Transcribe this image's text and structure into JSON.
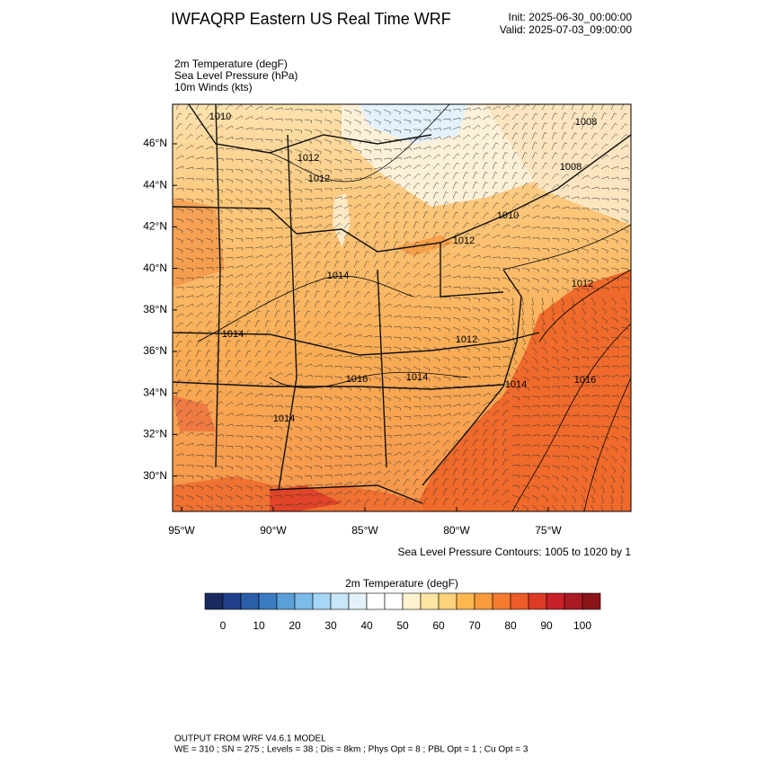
{
  "header": {
    "title": "IWFAQRP Eastern US Real Time WRF",
    "init": "Init: 2025-06-30_00:00:00",
    "valid": "Valid: 2025-07-03_09:00:00"
  },
  "fields": [
    "2m Temperature   (degF)",
    "Sea Level Pressure   (hPa)",
    "10m Winds   (kts)"
  ],
  "map": {
    "lat_labels": [
      "46°N",
      "44°N",
      "42°N",
      "40°N",
      "38°N",
      "36°N",
      "34°N",
      "32°N",
      "30°N"
    ],
    "lon_labels": [
      "95°W",
      "90°W",
      "85°W",
      "80°W",
      "75°W"
    ],
    "contour_labels": [
      "1010",
      "1008",
      "1012",
      "1012",
      "1008",
      "1010",
      "1012",
      "1014",
      "1012",
      "1014",
      "1012",
      "1016",
      "1014",
      "1014",
      "1016",
      "1014"
    ],
    "contour_note": "Sea Level Pressure Contours: 1005 to 1020 by 1"
  },
  "colorbar": {
    "title": "2m Temperature  (degF)",
    "labels": [
      0,
      10,
      20,
      30,
      40,
      50,
      60,
      70,
      80,
      90,
      100
    ],
    "colors": [
      "#1b2a5e",
      "#1f3f8a",
      "#2b5ea8",
      "#3a7cc2",
      "#5a9fd8",
      "#7dbbea",
      "#a5d6f5",
      "#c7e6f8",
      "#e3f2fa",
      "#ffffff",
      "#ffffff",
      "#fff3cf",
      "#fee6a2",
      "#fdd27a",
      "#fdb84f",
      "#f99a3c",
      "#f47b2e",
      "#ec5b28",
      "#dd3b26",
      "#c8202a",
      "#aa1a22",
      "#8b1419"
    ]
  },
  "footer": [
    "OUTPUT FROM WRF V4.6.1 MODEL",
    "WE = 310 ; SN = 275 ; Levels = 38 ; Dis = 8km ; Phys Opt = 8 ; PBL Opt = 1 ; Cu Opt = 3"
  ]
}
